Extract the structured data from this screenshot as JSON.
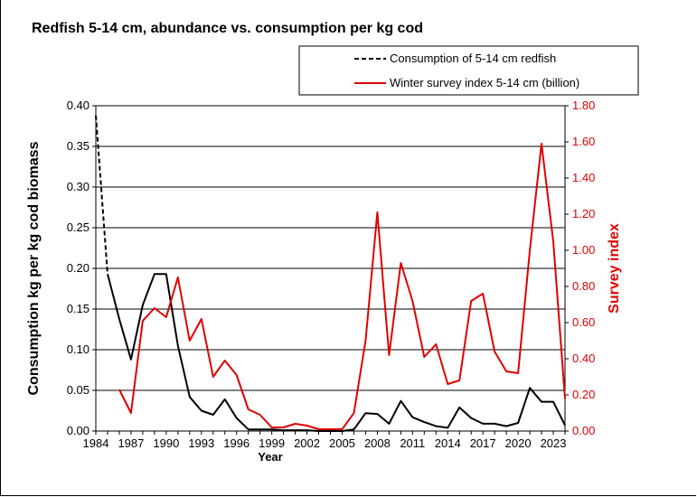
{
  "chart_data": {
    "type": "line",
    "title": "Redfish 5-14 cm, abundance vs. consumption per kg cod",
    "xlabel": "Year",
    "ylabel": "Consumption kg per kg cod biomass",
    "y2label": "Survey index",
    "xlim": [
      1984,
      2024
    ],
    "ylim": [
      0,
      0.4
    ],
    "y2lim": [
      0,
      1.8
    ],
    "x_ticks": [
      "1984",
      "1987",
      "1990",
      "1993",
      "1996",
      "1999",
      "2002",
      "2005",
      "2008",
      "2011",
      "2014",
      "2017",
      "2020",
      "2023"
    ],
    "y_ticks": [
      "0.00",
      "0.05",
      "0.10",
      "0.15",
      "0.20",
      "0.25",
      "0.30",
      "0.35",
      "0.40"
    ],
    "y2_ticks": [
      "0.00",
      "0.20",
      "0.40",
      "0.60",
      "0.80",
      "1.00",
      "1.20",
      "1.40",
      "1.60",
      "1.80"
    ],
    "grid": true,
    "legend": "top-right",
    "series": [
      {
        "name": "Consumption of 5-14 cm redfish",
        "axis": "left",
        "color": "#000000",
        "style": "dashed-then-solid",
        "x": [
          1984,
          1985,
          1986,
          1987,
          1988,
          1989,
          1990,
          1991,
          1992,
          1993,
          1994,
          1995,
          1996,
          1997,
          1998,
          1999,
          2000,
          2001,
          2002,
          2003,
          2004,
          2005,
          2006,
          2007,
          2008,
          2009,
          2010,
          2011,
          2012,
          2013,
          2014,
          2015,
          2016,
          2017,
          2018,
          2019,
          2020,
          2021,
          2022,
          2023,
          2024
        ],
        "y": [
          0.388,
          0.193,
          0.138,
          0.088,
          0.155,
          0.193,
          0.193,
          0.105,
          0.042,
          0.025,
          0.02,
          0.039,
          0.016,
          0.002,
          0.002,
          0.002,
          0.001,
          0.001,
          0.001,
          0.0,
          0.0,
          0.0,
          0.002,
          0.022,
          0.021,
          0.009,
          0.037,
          0.017,
          0.011,
          0.006,
          0.004,
          0.029,
          0.016,
          0.009,
          0.009,
          0.006,
          0.01,
          0.053,
          0.036,
          0.036,
          0.007
        ]
      },
      {
        "name": "Winter survey index 5-14 cm (billion)",
        "axis": "right",
        "color": "#e00000",
        "style": "solid",
        "x": [
          1986,
          1987,
          1988,
          1989,
          1990,
          1991,
          1992,
          1993,
          1994,
          1995,
          1996,
          1997,
          1998,
          1999,
          2000,
          2001,
          2002,
          2003,
          2004,
          2005,
          2006,
          2007,
          2008,
          2009,
          2010,
          2011,
          2012,
          2013,
          2014,
          2015,
          2016,
          2017,
          2018,
          2019,
          2020,
          2021,
          2022,
          2023,
          2024
        ],
        "y": [
          0.23,
          0.1,
          0.61,
          0.68,
          0.63,
          0.85,
          0.5,
          0.62,
          0.3,
          0.39,
          0.31,
          0.12,
          0.09,
          0.02,
          0.02,
          0.04,
          0.03,
          0.01,
          0.01,
          0.01,
          0.1,
          0.5,
          1.21,
          0.42,
          0.93,
          0.72,
          0.41,
          0.48,
          0.26,
          0.28,
          0.72,
          0.76,
          0.44,
          0.33,
          0.32,
          1.0,
          1.59,
          1.05,
          0.18
        ]
      }
    ]
  }
}
